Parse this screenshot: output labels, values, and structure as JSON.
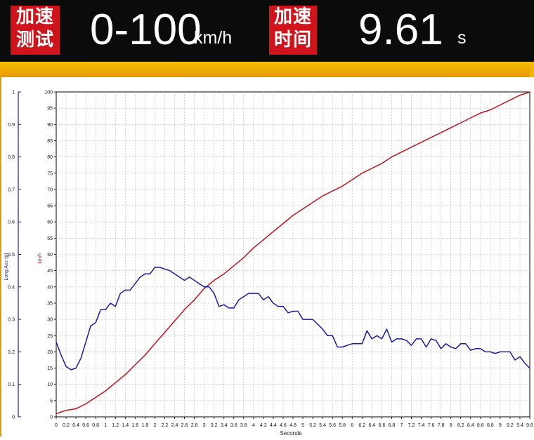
{
  "header": {
    "tag1_line1": "加速",
    "tag1_line2": "测试",
    "test_value": "0-100",
    "test_unit": "km/h",
    "tag2_line1": "加速",
    "tag2_line2": "时间",
    "time_value": "9.61",
    "time_unit": "s"
  },
  "colors": {
    "speed_line": "#c0141a",
    "acc_line": "#1a1aa0",
    "grid": "#b8b8b8",
    "acc_axis": "#1a1aa0",
    "speed_axis_label": "#b01010"
  },
  "chart_data": {
    "type": "line",
    "xlabel": "Seconds",
    "ylabel_left": "Long Acc (g)",
    "ylabel_right": "km/h",
    "xlim": [
      0,
      9.6
    ],
    "x_ticks": [
      "0",
      "0.2",
      "0.4",
      "0.6",
      "0.8",
      "1",
      "1.2",
      "1.4",
      "1.6",
      "1.8",
      "2",
      "2.2",
      "2.4",
      "2.6",
      "2.8",
      "3",
      "3.2",
      "3.4",
      "3.6",
      "3.8",
      "4",
      "4.2",
      "4.4",
      "4.6",
      "4.8",
      "5",
      "5.2",
      "5.4",
      "5.6",
      "5.8",
      "6",
      "6.2",
      "6.4",
      "6.6",
      "6.8",
      "7",
      "7.2",
      "7.4",
      "7.6",
      "7.8",
      "8",
      "8.2",
      "8.4",
      "8.6",
      "8.8",
      "9",
      "9.2",
      "9.4",
      "9.6"
    ],
    "y_left_lim": [
      0,
      1
    ],
    "y_left_ticks": [
      "0",
      "0.1",
      "0.2",
      "0.3",
      "0.4",
      "0.5",
      "0.6",
      "0.7",
      "0.8",
      "0.9",
      "1"
    ],
    "y_right_lim": [
      0,
      100
    ],
    "y_right_ticks": [
      "0",
      "5",
      "10",
      "15",
      "20",
      "25",
      "30",
      "35",
      "40",
      "45",
      "50",
      "55",
      "60",
      "65",
      "70",
      "75",
      "80",
      "85",
      "90",
      "95",
      "100"
    ],
    "grid": true,
    "series": [
      {
        "axis": "right",
        "x": [
          0,
          0.2,
          0.4,
          0.6,
          0.8,
          1.0,
          1.2,
          1.4,
          1.6,
          1.8,
          2.0,
          2.2,
          2.4,
          2.6,
          2.8,
          3.0,
          3.2,
          3.4,
          3.6,
          3.8,
          4.0,
          4.2,
          4.4,
          4.6,
          4.8,
          5.0,
          5.2,
          5.4,
          5.6,
          5.8,
          6.0,
          6.2,
          6.4,
          6.6,
          6.8,
          7.0,
          7.2,
          7.4,
          7.6,
          7.8,
          8.0,
          8.2,
          8.4,
          8.6,
          8.8,
          9.0,
          9.2,
          9.4,
          9.61
        ],
        "values": [
          1,
          2,
          2.5,
          4,
          6,
          8,
          10.5,
          13,
          16,
          19,
          22.5,
          26,
          29.5,
          33,
          36,
          39.5,
          42,
          44,
          46.5,
          49,
          52,
          54.5,
          57,
          59.5,
          62,
          64,
          66,
          68,
          69.5,
          71,
          73,
          75,
          76.5,
          78,
          80,
          81.5,
          83,
          84.5,
          86,
          87.5,
          89,
          90.5,
          92,
          93.5,
          94.5,
          96,
          97.5,
          99,
          100
        ]
      },
      {
        "axis": "left",
        "x": [
          0,
          0.1,
          0.2,
          0.3,
          0.4,
          0.5,
          0.6,
          0.7,
          0.8,
          0.9,
          1.0,
          1.1,
          1.2,
          1.3,
          1.4,
          1.5,
          1.6,
          1.7,
          1.8,
          1.9,
          2.0,
          2.1,
          2.2,
          2.3,
          2.4,
          2.5,
          2.6,
          2.7,
          2.8,
          2.9,
          3.0,
          3.1,
          3.2,
          3.3,
          3.4,
          3.5,
          3.6,
          3.7,
          3.8,
          3.9,
          4.0,
          4.1,
          4.2,
          4.3,
          4.4,
          4.5,
          4.6,
          4.7,
          4.8,
          4.9,
          5.0,
          5.1,
          5.2,
          5.3,
          5.4,
          5.5,
          5.6,
          5.7,
          5.8,
          5.9,
          6.0,
          6.1,
          6.2,
          6.3,
          6.4,
          6.5,
          6.6,
          6.7,
          6.8,
          6.9,
          7.0,
          7.1,
          7.2,
          7.3,
          7.4,
          7.5,
          7.6,
          7.7,
          7.8,
          7.9,
          8.0,
          8.1,
          8.2,
          8.3,
          8.4,
          8.5,
          8.6,
          8.7,
          8.8,
          8.9,
          9.0,
          9.1,
          9.2,
          9.3,
          9.4,
          9.5,
          9.6
        ],
        "values": [
          0.23,
          0.19,
          0.155,
          0.145,
          0.15,
          0.18,
          0.23,
          0.28,
          0.29,
          0.33,
          0.33,
          0.35,
          0.34,
          0.38,
          0.39,
          0.39,
          0.41,
          0.43,
          0.44,
          0.44,
          0.46,
          0.46,
          0.455,
          0.45,
          0.44,
          0.43,
          0.42,
          0.43,
          0.42,
          0.41,
          0.4,
          0.4,
          0.38,
          0.34,
          0.345,
          0.335,
          0.335,
          0.36,
          0.37,
          0.38,
          0.38,
          0.38,
          0.36,
          0.37,
          0.35,
          0.34,
          0.34,
          0.32,
          0.325,
          0.325,
          0.3,
          0.3,
          0.3,
          0.285,
          0.27,
          0.25,
          0.25,
          0.215,
          0.215,
          0.22,
          0.225,
          0.225,
          0.225,
          0.265,
          0.24,
          0.25,
          0.24,
          0.27,
          0.23,
          0.24,
          0.24,
          0.235,
          0.22,
          0.24,
          0.24,
          0.215,
          0.24,
          0.235,
          0.21,
          0.225,
          0.215,
          0.21,
          0.225,
          0.225,
          0.205,
          0.21,
          0.21,
          0.2,
          0.2,
          0.195,
          0.2,
          0.2,
          0.2,
          0.175,
          0.185,
          0.165,
          0.15
        ]
      }
    ]
  }
}
